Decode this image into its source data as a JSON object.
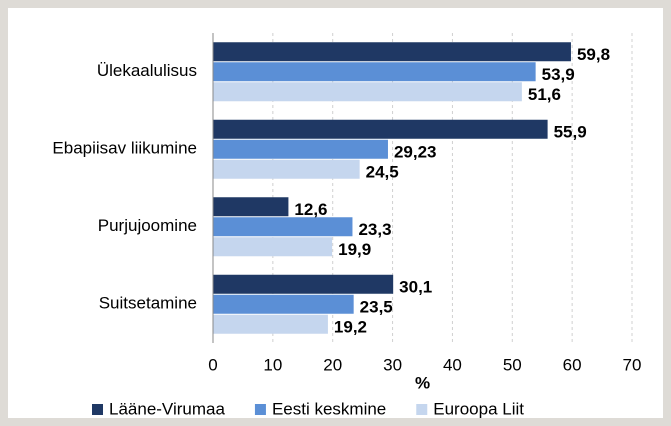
{
  "chart_data": {
    "type": "hbar",
    "categories": [
      "Ülekaalulisus",
      "Ebapiisav liikumine",
      "Purjujoomine",
      "Suitsetamine"
    ],
    "series": [
      {
        "name": "Lääne-Virumaa",
        "color": "#1f3864",
        "values": [
          59.8,
          55.9,
          12.6,
          30.1
        ],
        "value_labels": [
          "59,8",
          "55,9",
          "12,6",
          "30,1"
        ]
      },
      {
        "name": "Eesti keskmine",
        "color": "#5b8fd6",
        "values": [
          53.9,
          29.23,
          23.3,
          23.5
        ],
        "value_labels": [
          "53,9",
          "29,23",
          "23,3",
          "23,5"
        ]
      },
      {
        "name": "Euroopa Liit",
        "color": "#c5d6ee",
        "values": [
          51.6,
          24.5,
          19.9,
          19.2
        ],
        "value_labels": [
          "51,6",
          "24,5",
          "19,9",
          "19,2"
        ]
      }
    ],
    "xlabel": "%",
    "xlim": [
      0,
      70
    ],
    "xticks": [
      0,
      10,
      20,
      30,
      40,
      50,
      60,
      70
    ],
    "grid": true,
    "legend": "bottom"
  }
}
